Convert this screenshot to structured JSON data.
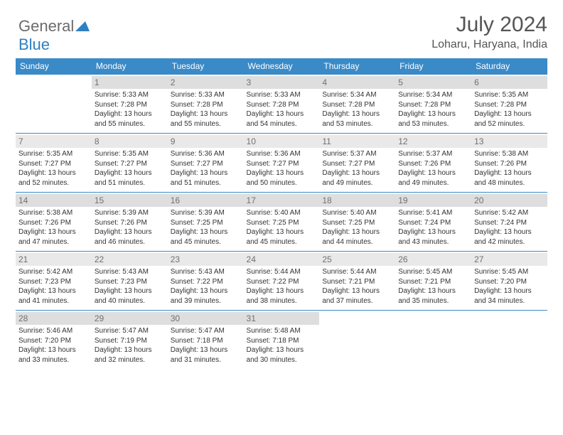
{
  "logo": {
    "text_a": "General",
    "text_b": "Blue"
  },
  "title": "July 2024",
  "location": "Loharu, Haryana, India",
  "headers": [
    "Sunday",
    "Monday",
    "Tuesday",
    "Wednesday",
    "Thursday",
    "Friday",
    "Saturday"
  ],
  "colors": {
    "header_bg": "#3a8ac8",
    "header_fg": "#ffffff",
    "daynum_bg": "#e9e9e9",
    "daynum_shade_bg": "#dedede",
    "cell_border": "#3a8ac8",
    "logo_gray": "#6b6b6b",
    "logo_blue": "#2f7fc1"
  },
  "weeks": [
    [
      {
        "n": "",
        "sr": "",
        "ss": "",
        "dl": ""
      },
      {
        "n": "1",
        "sr": "Sunrise: 5:33 AM",
        "ss": "Sunset: 7:28 PM",
        "dl": "Daylight: 13 hours and 55 minutes."
      },
      {
        "n": "2",
        "sr": "Sunrise: 5:33 AM",
        "ss": "Sunset: 7:28 PM",
        "dl": "Daylight: 13 hours and 55 minutes."
      },
      {
        "n": "3",
        "sr": "Sunrise: 5:33 AM",
        "ss": "Sunset: 7:28 PM",
        "dl": "Daylight: 13 hours and 54 minutes."
      },
      {
        "n": "4",
        "sr": "Sunrise: 5:34 AM",
        "ss": "Sunset: 7:28 PM",
        "dl": "Daylight: 13 hours and 53 minutes."
      },
      {
        "n": "5",
        "sr": "Sunrise: 5:34 AM",
        "ss": "Sunset: 7:28 PM",
        "dl": "Daylight: 13 hours and 53 minutes."
      },
      {
        "n": "6",
        "sr": "Sunrise: 5:35 AM",
        "ss": "Sunset: 7:28 PM",
        "dl": "Daylight: 13 hours and 52 minutes."
      }
    ],
    [
      {
        "n": "7",
        "sr": "Sunrise: 5:35 AM",
        "ss": "Sunset: 7:27 PM",
        "dl": "Daylight: 13 hours and 52 minutes."
      },
      {
        "n": "8",
        "sr": "Sunrise: 5:35 AM",
        "ss": "Sunset: 7:27 PM",
        "dl": "Daylight: 13 hours and 51 minutes."
      },
      {
        "n": "9",
        "sr": "Sunrise: 5:36 AM",
        "ss": "Sunset: 7:27 PM",
        "dl": "Daylight: 13 hours and 51 minutes."
      },
      {
        "n": "10",
        "sr": "Sunrise: 5:36 AM",
        "ss": "Sunset: 7:27 PM",
        "dl": "Daylight: 13 hours and 50 minutes."
      },
      {
        "n": "11",
        "sr": "Sunrise: 5:37 AM",
        "ss": "Sunset: 7:27 PM",
        "dl": "Daylight: 13 hours and 49 minutes."
      },
      {
        "n": "12",
        "sr": "Sunrise: 5:37 AM",
        "ss": "Sunset: 7:26 PM",
        "dl": "Daylight: 13 hours and 49 minutes."
      },
      {
        "n": "13",
        "sr": "Sunrise: 5:38 AM",
        "ss": "Sunset: 7:26 PM",
        "dl": "Daylight: 13 hours and 48 minutes."
      }
    ],
    [
      {
        "n": "14",
        "sr": "Sunrise: 5:38 AM",
        "ss": "Sunset: 7:26 PM",
        "dl": "Daylight: 13 hours and 47 minutes."
      },
      {
        "n": "15",
        "sr": "Sunrise: 5:39 AM",
        "ss": "Sunset: 7:26 PM",
        "dl": "Daylight: 13 hours and 46 minutes."
      },
      {
        "n": "16",
        "sr": "Sunrise: 5:39 AM",
        "ss": "Sunset: 7:25 PM",
        "dl": "Daylight: 13 hours and 45 minutes."
      },
      {
        "n": "17",
        "sr": "Sunrise: 5:40 AM",
        "ss": "Sunset: 7:25 PM",
        "dl": "Daylight: 13 hours and 45 minutes."
      },
      {
        "n": "18",
        "sr": "Sunrise: 5:40 AM",
        "ss": "Sunset: 7:25 PM",
        "dl": "Daylight: 13 hours and 44 minutes."
      },
      {
        "n": "19",
        "sr": "Sunrise: 5:41 AM",
        "ss": "Sunset: 7:24 PM",
        "dl": "Daylight: 13 hours and 43 minutes."
      },
      {
        "n": "20",
        "sr": "Sunrise: 5:42 AM",
        "ss": "Sunset: 7:24 PM",
        "dl": "Daylight: 13 hours and 42 minutes."
      }
    ],
    [
      {
        "n": "21",
        "sr": "Sunrise: 5:42 AM",
        "ss": "Sunset: 7:23 PM",
        "dl": "Daylight: 13 hours and 41 minutes."
      },
      {
        "n": "22",
        "sr": "Sunrise: 5:43 AM",
        "ss": "Sunset: 7:23 PM",
        "dl": "Daylight: 13 hours and 40 minutes."
      },
      {
        "n": "23",
        "sr": "Sunrise: 5:43 AM",
        "ss": "Sunset: 7:22 PM",
        "dl": "Daylight: 13 hours and 39 minutes."
      },
      {
        "n": "24",
        "sr": "Sunrise: 5:44 AM",
        "ss": "Sunset: 7:22 PM",
        "dl": "Daylight: 13 hours and 38 minutes."
      },
      {
        "n": "25",
        "sr": "Sunrise: 5:44 AM",
        "ss": "Sunset: 7:21 PM",
        "dl": "Daylight: 13 hours and 37 minutes."
      },
      {
        "n": "26",
        "sr": "Sunrise: 5:45 AM",
        "ss": "Sunset: 7:21 PM",
        "dl": "Daylight: 13 hours and 35 minutes."
      },
      {
        "n": "27",
        "sr": "Sunrise: 5:45 AM",
        "ss": "Sunset: 7:20 PM",
        "dl": "Daylight: 13 hours and 34 minutes."
      }
    ],
    [
      {
        "n": "28",
        "sr": "Sunrise: 5:46 AM",
        "ss": "Sunset: 7:20 PM",
        "dl": "Daylight: 13 hours and 33 minutes."
      },
      {
        "n": "29",
        "sr": "Sunrise: 5:47 AM",
        "ss": "Sunset: 7:19 PM",
        "dl": "Daylight: 13 hours and 32 minutes."
      },
      {
        "n": "30",
        "sr": "Sunrise: 5:47 AM",
        "ss": "Sunset: 7:18 PM",
        "dl": "Daylight: 13 hours and 31 minutes."
      },
      {
        "n": "31",
        "sr": "Sunrise: 5:48 AM",
        "ss": "Sunset: 7:18 PM",
        "dl": "Daylight: 13 hours and 30 minutes."
      },
      {
        "n": "",
        "sr": "",
        "ss": "",
        "dl": ""
      },
      {
        "n": "",
        "sr": "",
        "ss": "",
        "dl": ""
      },
      {
        "n": "",
        "sr": "",
        "ss": "",
        "dl": ""
      }
    ]
  ]
}
